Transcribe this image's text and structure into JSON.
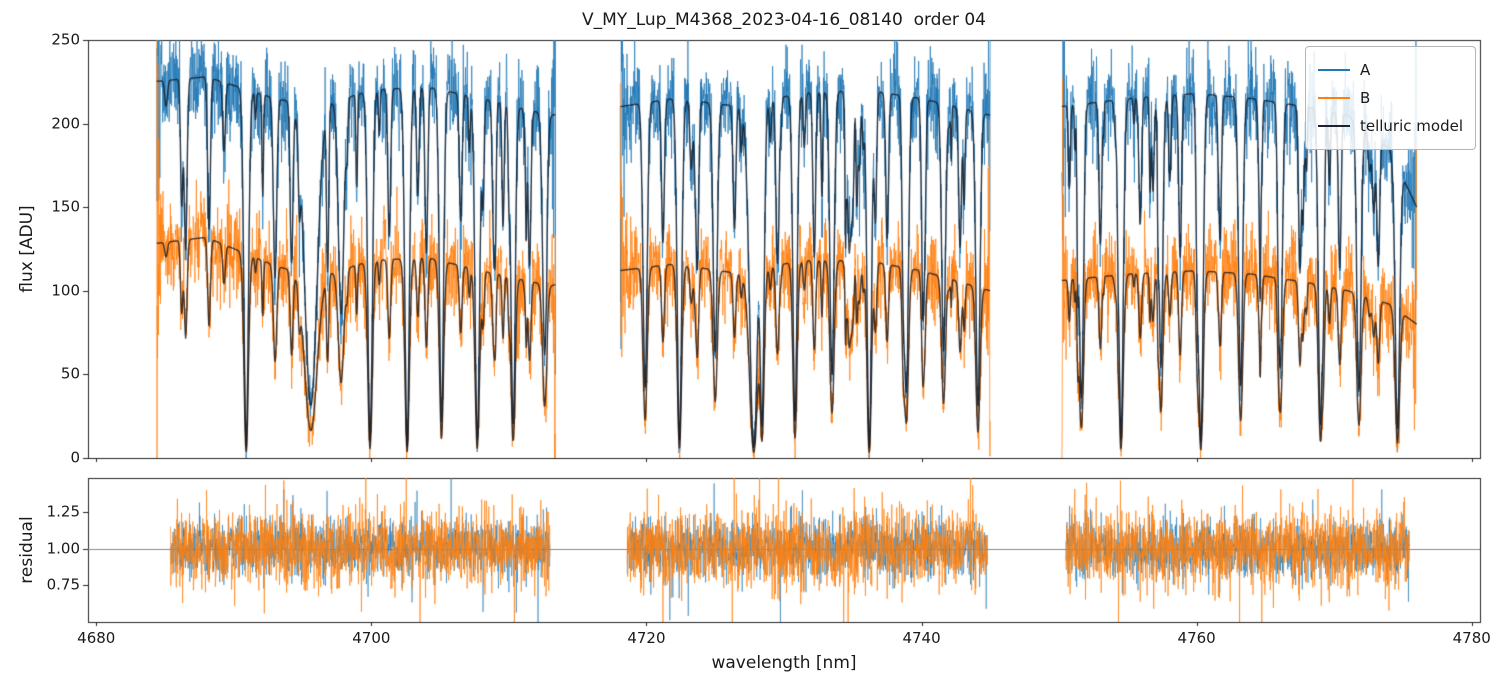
{
  "title": "V_MY_Lup_M4368_2023-04-16_08140  order 04",
  "axes": {
    "top": {
      "ylabel": "flux [ADU]",
      "yticks": [
        0,
        50,
        100,
        150,
        200,
        250
      ],
      "ylim": [
        0,
        250
      ]
    },
    "bottom": {
      "ylabel": "residual",
      "yticks": [
        "0.75",
        "1.00",
        "1.25"
      ],
      "ytick_values": [
        0.75,
        1.0,
        1.25
      ],
      "ylim": [
        0.5,
        1.48
      ]
    },
    "xlabel": "wavelength [nm]",
    "xticks": [
      4680,
      4700,
      4720,
      4740,
      4760,
      4780
    ],
    "xlim": [
      4679.4,
      4780.6
    ]
  },
  "legend": {
    "items": [
      {
        "label": "A",
        "color": "#1f77b4"
      },
      {
        "label": "B",
        "color": "#ff7f0e"
      },
      {
        "label": "telluric model",
        "color": "#1c2230"
      }
    ]
  },
  "chart_data": {
    "type": "line",
    "title": "V_MY_Lup_M4368_2023-04-16_08140  order 04",
    "xlabel": "wavelength [nm]",
    "ylabel_top": "flux [ADU]",
    "ylabel_bottom": "residual",
    "xlim": [
      4679.4,
      4780.6
    ],
    "ylim_top": [
      0,
      250
    ],
    "ylim_bottom": [
      0.5,
      1.48
    ],
    "grid": false,
    "legend_position": "upper right",
    "segments": [
      [
        4684.4,
        4713.4
      ],
      [
        4718.1,
        4745.0
      ],
      [
        4750.2,
        4776.0
      ]
    ],
    "series": [
      {
        "name": "A",
        "color": "#1f77b4",
        "noise_sigma": 14,
        "baseline": [
          [
            4684,
            225
          ],
          [
            4688,
            228
          ],
          [
            4693,
            215
          ],
          [
            4696,
            210
          ],
          [
            4700,
            220
          ],
          [
            4704,
            222
          ],
          [
            4708,
            215
          ],
          [
            4713,
            205
          ],
          [
            4718,
            210
          ],
          [
            4722,
            215
          ],
          [
            4727,
            210
          ],
          [
            4731,
            218
          ],
          [
            4736,
            220
          ],
          [
            4740,
            215
          ],
          [
            4745,
            205
          ],
          [
            4750,
            210
          ],
          [
            4755,
            215
          ],
          [
            4760,
            218
          ],
          [
            4764,
            215
          ],
          [
            4768,
            210
          ],
          [
            4771,
            205
          ],
          [
            4774,
            185
          ],
          [
            4776,
            150
          ]
        ]
      },
      {
        "name": "B",
        "color": "#ff7f0e",
        "noise_sigma": 13,
        "baseline": [
          [
            4684,
            128
          ],
          [
            4688,
            132
          ],
          [
            4693,
            115
          ],
          [
            4696,
            108
          ],
          [
            4700,
            118
          ],
          [
            4704,
            120
          ],
          [
            4708,
            112
          ],
          [
            4713,
            103
          ],
          [
            4718,
            112
          ],
          [
            4722,
            116
          ],
          [
            4727,
            110
          ],
          [
            4731,
            118
          ],
          [
            4736,
            118
          ],
          [
            4740,
            112
          ],
          [
            4745,
            100
          ],
          [
            4750,
            106
          ],
          [
            4755,
            110
          ],
          [
            4760,
            112
          ],
          [
            4764,
            110
          ],
          [
            4768,
            105
          ],
          [
            4771,
            100
          ],
          [
            4774,
            92
          ],
          [
            4776,
            80
          ]
        ]
      },
      {
        "name": "telluric model",
        "color": "#10151f"
      }
    ],
    "absorption_lines": [
      [
        4690.9,
        0.97,
        0.16
      ],
      [
        4695.6,
        0.85,
        0.45
      ],
      [
        4697.8,
        0.6,
        0.2
      ],
      [
        4699.9,
        0.95,
        0.16
      ],
      [
        4702.6,
        0.97,
        0.16
      ],
      [
        4705.1,
        0.9,
        0.15
      ],
      [
        4707.7,
        0.95,
        0.16
      ],
      [
        4710.3,
        0.9,
        0.15
      ],
      [
        4712.6,
        0.7,
        0.15
      ],
      [
        4719.9,
        0.8,
        0.15
      ],
      [
        4722.4,
        0.95,
        0.16
      ],
      [
        4725.0,
        0.7,
        0.15
      ],
      [
        4727.8,
        0.97,
        0.3
      ],
      [
        4728.4,
        0.9,
        0.15
      ],
      [
        4730.8,
        0.9,
        0.15
      ],
      [
        4733.5,
        0.75,
        0.15
      ],
      [
        4736.2,
        0.97,
        0.16
      ],
      [
        4738.9,
        0.8,
        0.15
      ],
      [
        4741.6,
        0.7,
        0.14
      ],
      [
        4744.1,
        0.85,
        0.15
      ],
      [
        4751.6,
        0.8,
        0.15
      ],
      [
        4754.5,
        0.95,
        0.16
      ],
      [
        4757.4,
        0.75,
        0.14
      ],
      [
        4760.3,
        0.95,
        0.16
      ],
      [
        4763.2,
        0.8,
        0.15
      ],
      [
        4766.1,
        0.7,
        0.14
      ],
      [
        4769.0,
        0.9,
        0.15
      ],
      [
        4771.8,
        0.8,
        0.15
      ],
      [
        4774.6,
        0.9,
        0.16
      ],
      [
        4686.5,
        0.45,
        0.1
      ],
      [
        4688.2,
        0.4,
        0.1
      ],
      [
        4693.0,
        0.5,
        0.12
      ],
      [
        4694.2,
        0.45,
        0.1
      ],
      [
        4701.3,
        0.4,
        0.1
      ],
      [
        4704.0,
        0.45,
        0.1
      ],
      [
        4706.5,
        0.35,
        0.1
      ],
      [
        4708.9,
        0.4,
        0.1
      ],
      [
        4711.5,
        0.45,
        0.1
      ],
      [
        4721.2,
        0.4,
        0.1
      ],
      [
        4723.7,
        0.45,
        0.1
      ],
      [
        4726.4,
        0.35,
        0.1
      ],
      [
        4729.5,
        0.4,
        0.1
      ],
      [
        4732.2,
        0.45,
        0.1
      ],
      [
        4734.8,
        0.35,
        0.1
      ],
      [
        4737.5,
        0.4,
        0.1
      ],
      [
        4740.2,
        0.45,
        0.1
      ],
      [
        4742.8,
        0.4,
        0.1
      ],
      [
        4753.0,
        0.4,
        0.1
      ],
      [
        4755.9,
        0.35,
        0.1
      ],
      [
        4758.8,
        0.45,
        0.1
      ],
      [
        4761.7,
        0.4,
        0.1
      ],
      [
        4764.6,
        0.35,
        0.1
      ],
      [
        4767.5,
        0.4,
        0.1
      ],
      [
        4770.4,
        0.45,
        0.1
      ],
      [
        4773.2,
        0.4,
        0.1
      ]
    ],
    "residual": {
      "center": 1.0,
      "sigma_A": 0.1,
      "sigma_B": 0.13,
      "hline": 1.0,
      "segments": [
        [
          4685.4,
          4713.0
        ],
        [
          4718.6,
          4744.8
        ],
        [
          4750.5,
          4775.5
        ]
      ]
    }
  }
}
